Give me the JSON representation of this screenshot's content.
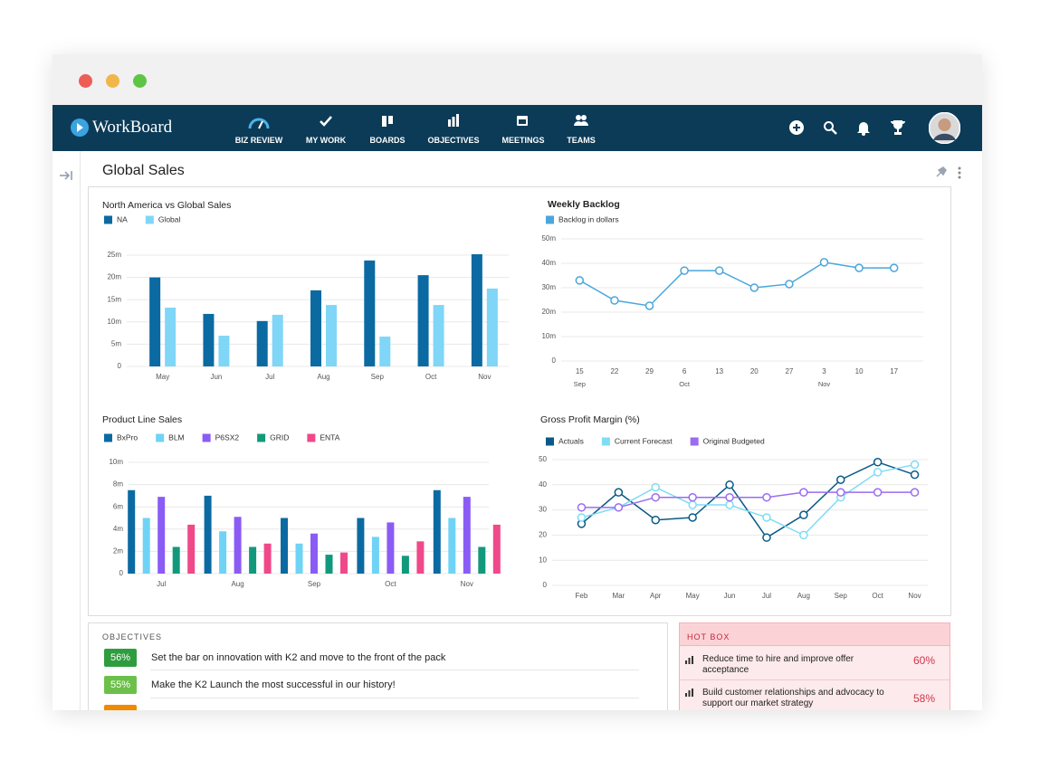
{
  "window": {
    "logo": "WorkBoard",
    "nav": [
      "BIZ REVIEW",
      "MY WORK",
      "BOARDS",
      "OBJECTIVES",
      "MEETINGS",
      "TEAMS"
    ]
  },
  "page": {
    "title": "Global Sales"
  },
  "chart_data": [
    {
      "type": "bar",
      "title": "North America vs Global Sales",
      "categories": [
        "May",
        "Jun",
        "Jul",
        "Aug",
        "Sep",
        "Oct",
        "Nov"
      ],
      "series": [
        {
          "name": "NA",
          "color": "#0b6aa2",
          "values": [
            20,
            11.8,
            10.2,
            17.1,
            23.8,
            20.5,
            25.2
          ]
        },
        {
          "name": "Global",
          "color": "#7fd6f7",
          "values": [
            13.2,
            6.9,
            11.6,
            13.8,
            6.7,
            13.8,
            17.5
          ]
        }
      ],
      "ylim": [
        0,
        25
      ],
      "yticks": [
        0,
        {
          "value": 5,
          "label": "5m"
        },
        {
          "value": 10,
          "label": "10m"
        },
        {
          "value": 15,
          "label": "15m"
        },
        {
          "value": 20,
          "label": "20m"
        },
        {
          "value": 25,
          "label": "25m"
        }
      ],
      "grid": true
    },
    {
      "type": "line",
      "title": "Weekly Backlog",
      "categories": [
        "15",
        "22",
        "29",
        "6",
        "13",
        "20",
        "27",
        "3",
        "10",
        "17"
      ],
      "month_labels": [
        "Sep",
        null,
        null,
        "Oct",
        null,
        null,
        null,
        "Nov",
        null,
        null
      ],
      "series": [
        {
          "name": "Backlog in dollars",
          "color": "#4aa6dc",
          "values": [
            33,
            24.8,
            22.6,
            37,
            37,
            30,
            31.5,
            40.4,
            38.1,
            38.1
          ]
        }
      ],
      "ylim": [
        0,
        50
      ],
      "yticks": [
        0,
        {
          "value": 10,
          "label": "10m"
        },
        {
          "value": 20,
          "label": "20m"
        },
        {
          "value": 30,
          "label": "30m"
        },
        {
          "value": 40,
          "label": "40m"
        },
        {
          "value": 50,
          "label": "50m"
        }
      ],
      "grid": true
    },
    {
      "type": "bar",
      "title": "Product Line Sales",
      "categories": [
        "Jul",
        "Aug",
        "Sep",
        "Oct",
        "Nov"
      ],
      "series": [
        {
          "name": "BxPro",
          "color": "#0b6aa2",
          "values": [
            7.5,
            7.0,
            5.0,
            5.0,
            7.5
          ]
        },
        {
          "name": "BLM",
          "color": "#6fd3f5",
          "values": [
            5.0,
            3.8,
            2.7,
            3.3,
            5.0
          ]
        },
        {
          "name": "P6SX2",
          "color": "#8a5cf5",
          "values": [
            6.9,
            5.1,
            3.6,
            4.6,
            6.9
          ]
        },
        {
          "name": "GRID",
          "color": "#12997c",
          "values": [
            2.4,
            2.4,
            1.7,
            1.6,
            2.4
          ]
        },
        {
          "name": "ENTA",
          "color": "#f0498a",
          "values": [
            4.4,
            2.7,
            1.9,
            2.9,
            4.4
          ]
        }
      ],
      "ylim": [
        0,
        10
      ],
      "yticks": [
        0,
        {
          "value": 2,
          "label": "2m"
        },
        {
          "value": 4,
          "label": "4m"
        },
        {
          "value": 6,
          "label": "6m"
        },
        {
          "value": 8,
          "label": "8m"
        },
        {
          "value": 10,
          "label": "10m"
        }
      ],
      "grid": true
    },
    {
      "type": "line",
      "title": "Gross Profit Margin (%)",
      "categories": [
        "Feb",
        "Mar",
        "Apr",
        "May",
        "Jun",
        "Jul",
        "Aug",
        "Sep",
        "Oct",
        "Nov"
      ],
      "series": [
        {
          "name": "Actuals",
          "color": "#0a5a86",
          "values": [
            24.5,
            37,
            26,
            27,
            40,
            19,
            28,
            42,
            49,
            44
          ]
        },
        {
          "name": "Current Forecast",
          "color": "#7fdcf5",
          "values": [
            27,
            31,
            39,
            32,
            32,
            27,
            20,
            35,
            45,
            48
          ]
        },
        {
          "name": "Original Budgeted",
          "color": "#9a6cf0",
          "values": [
            31,
            31,
            35,
            35,
            35,
            35,
            37,
            37,
            37,
            37
          ]
        }
      ],
      "ylim": [
        0,
        50
      ],
      "yticks": [
        0,
        10,
        20,
        30,
        40,
        50
      ],
      "grid": true
    }
  ],
  "objectives": {
    "title": "OBJECTIVES",
    "items": [
      {
        "percent": "56%",
        "text": "Set the bar on innovation with K2 and move to the front of the pack"
      },
      {
        "percent": "55%",
        "text": "Make the K2 Launch the most successful in our history!"
      }
    ]
  },
  "hot_box": {
    "title": "HOT BOX",
    "items": [
      {
        "text": "Reduce time to hire and improve offer acceptance",
        "percent": "60%"
      },
      {
        "text": "Build customer relationships and advocacy to support our market strategy",
        "percent": "58%"
      }
    ]
  }
}
